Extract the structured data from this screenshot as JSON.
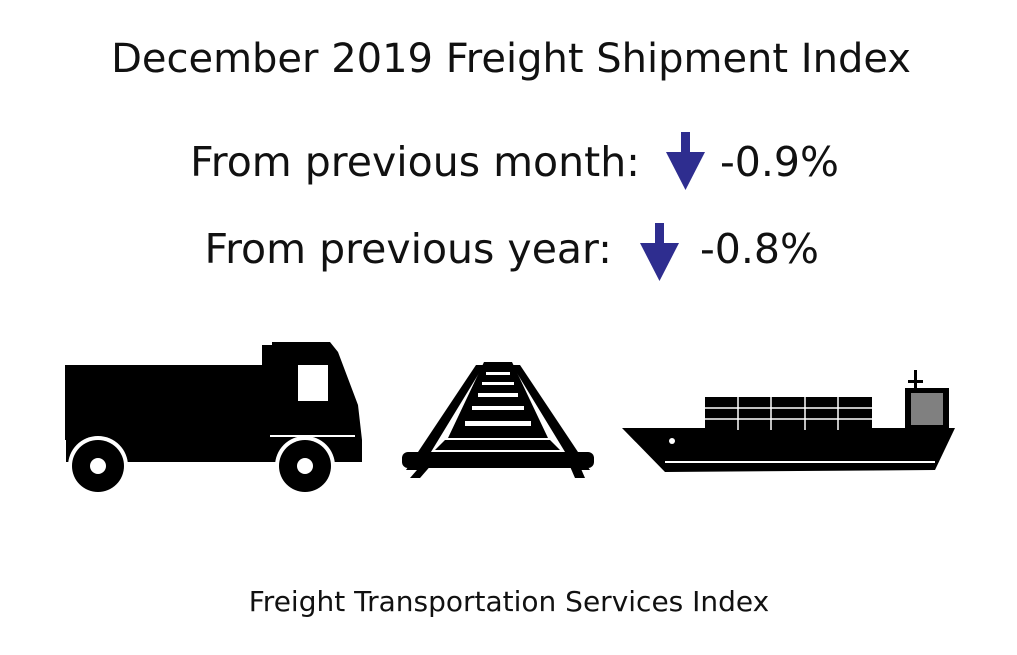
{
  "title": "December 2019 Freight Shipment Index",
  "rows": [
    {
      "label": "From previous month:",
      "value": "-0.9%"
    },
    {
      "label": "From previous year:",
      "value": "-0.8%"
    }
  ],
  "footer": "Freight Transportation Services Index"
}
